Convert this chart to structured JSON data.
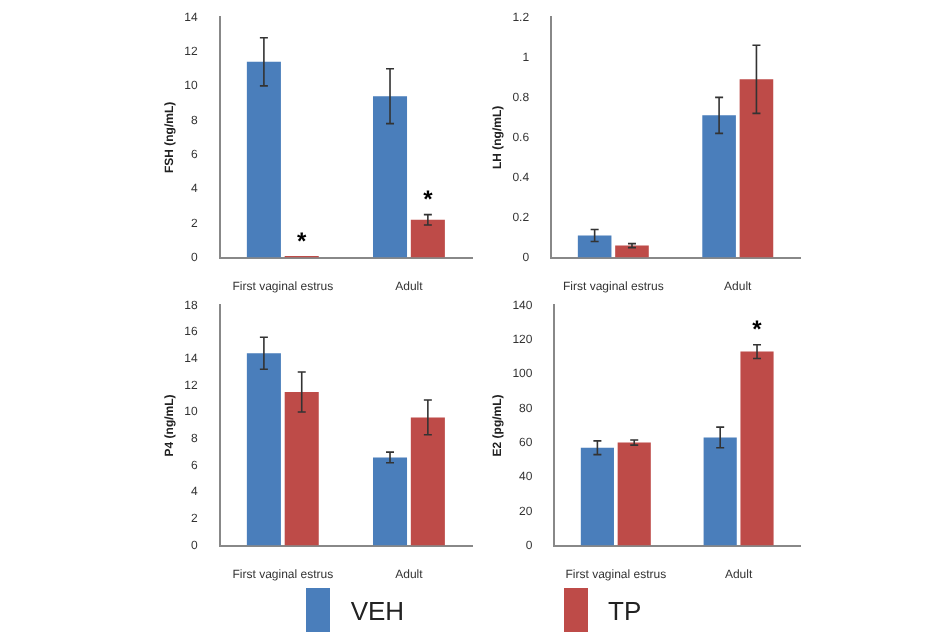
{
  "chart_data": [
    {
      "type": "bar",
      "ylabel": "FSH (ng/mL)",
      "categories": [
        "First vaginal estrus",
        "Adult"
      ],
      "ylim": [
        0,
        14
      ],
      "yticks": [
        0,
        2,
        4,
        6,
        8,
        10,
        12,
        14
      ],
      "grid": false,
      "legend": "bottom",
      "series": [
        {
          "name": "VEH",
          "color": "#4a7ebb",
          "values": [
            11.4,
            9.4
          ],
          "errors": [
            1.4,
            1.6
          ]
        },
        {
          "name": "TP",
          "color": "#be4b48",
          "values": [
            0.1,
            2.2
          ],
          "errors": [
            null,
            0.3
          ]
        }
      ],
      "annotations": [
        {
          "text": "*",
          "x": "First vaginal estrus",
          "y": 0.1
        },
        {
          "text": "*",
          "x": "Adult",
          "y": 2.2
        }
      ]
    },
    {
      "type": "bar",
      "ylabel": "LH (ng/mL)",
      "categories": [
        "First vaginal estrus",
        "Adult"
      ],
      "ylim": [
        0,
        1.2
      ],
      "yticks": [
        0,
        0.2,
        0.4,
        0.6,
        0.8,
        1,
        1.2
      ],
      "grid": false,
      "series": [
        {
          "color": "#4a7ebb",
          "values": [
            0.11,
            0.71
          ],
          "errors": [
            0.03,
            0.09
          ]
        },
        {
          "color": "#be4b48",
          "values": [
            0.06,
            0.89
          ],
          "errors": [
            0.01,
            0.17
          ]
        }
      ]
    },
    {
      "type": "bar",
      "ylabel": "P4 (ng/mL)",
      "categories": [
        "First vaginal estrus",
        "Adult"
      ],
      "ylim": [
        0,
        18
      ],
      "yticks": [
        0,
        2,
        4,
        6,
        8,
        10,
        12,
        14,
        16,
        18
      ],
      "grid": false,
      "series": [
        {
          "color": "#4a7ebb",
          "values": [
            14.4,
            6.6
          ],
          "errors": [
            1.2,
            0.4
          ]
        },
        {
          "color": "#be4b48",
          "values": [
            11.5,
            9.6
          ],
          "errors": [
            1.5,
            1.3
          ]
        }
      ]
    },
    {
      "type": "bar",
      "ylabel": "E2 (pg/mL)",
      "categories": [
        "First vaginal estrus",
        "Adult"
      ],
      "ylim": [
        0,
        140
      ],
      "yticks": [
        0,
        20,
        40,
        60,
        80,
        100,
        120,
        140
      ],
      "grid": false,
      "series": [
        {
          "color": "#4a7ebb",
          "values": [
            57,
            63
          ],
          "errors": [
            4,
            6
          ]
        },
        {
          "color": "#be4b48",
          "values": [
            60,
            113
          ],
          "errors": [
            1.5,
            4
          ]
        }
      ],
      "annotations": [
        {
          "text": "*",
          "x": "Adult",
          "y": 113
        }
      ]
    }
  ]
}
